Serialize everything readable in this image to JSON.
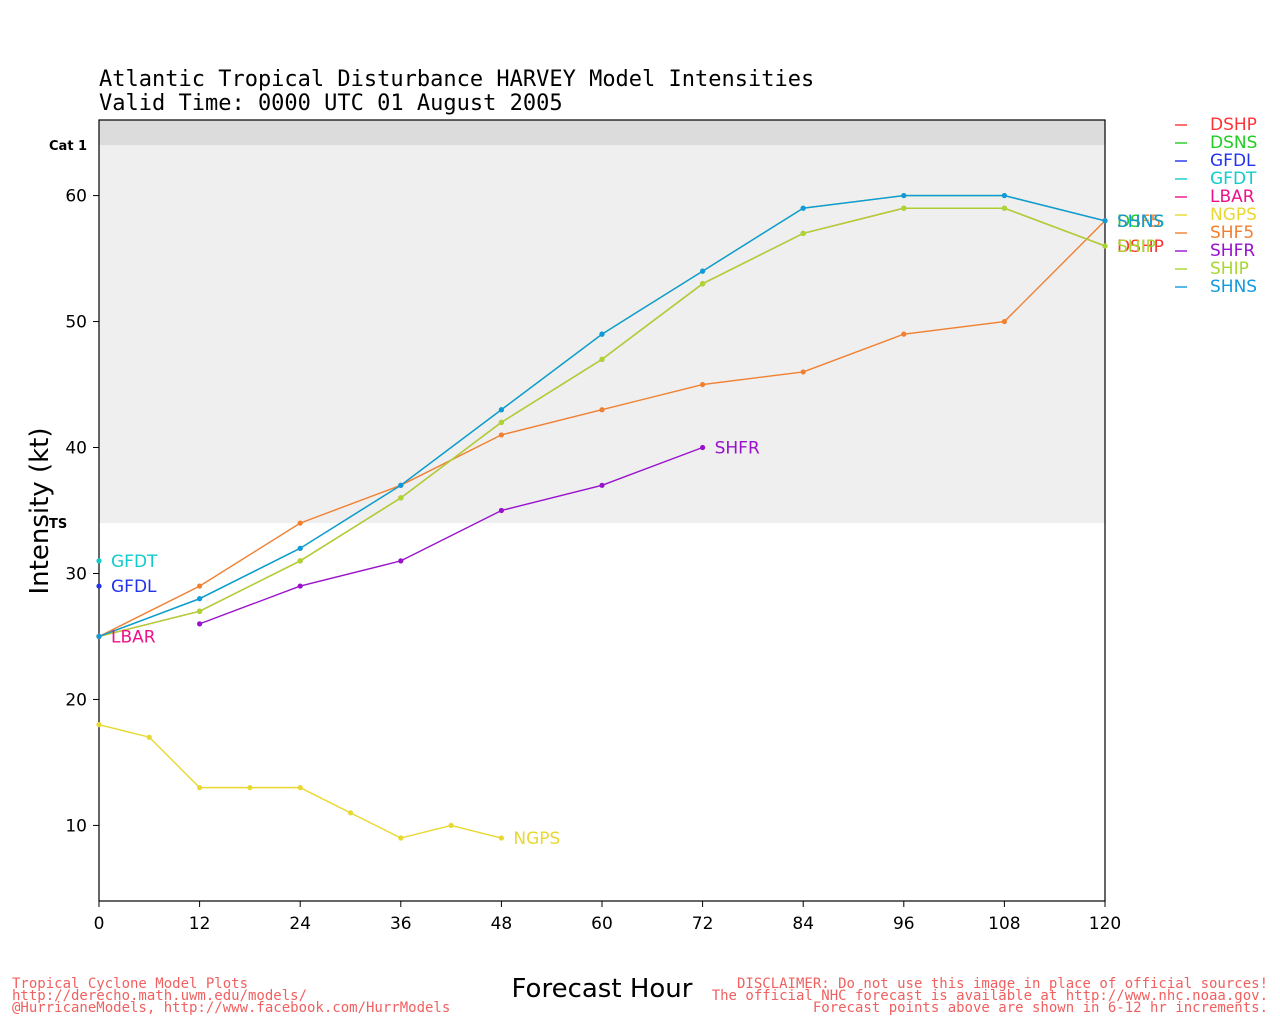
{
  "chart_data": {
    "type": "line",
    "title": "Atlantic Tropical Disturbance HARVEY Model Intensities",
    "subtitle": "Valid Time: 0000 UTC 01 August 2005",
    "xlabel": "Forecast Hour",
    "ylabel": "Intensity (kt)",
    "xlim": [
      0,
      120
    ],
    "ylim": [
      4,
      66
    ],
    "xticks": [
      0,
      12,
      24,
      36,
      48,
      60,
      72,
      84,
      96,
      108,
      120
    ],
    "yticks": [
      10,
      20,
      30,
      40,
      50,
      60
    ],
    "bands": [
      {
        "label": "TS",
        "from": 34,
        "to": 64,
        "color": "#efefef"
      },
      {
        "label": "Cat 1",
        "from": 64,
        "to": 66,
        "color": "#dcdcdc"
      }
    ],
    "legend": [
      "DSHP",
      "DSNS",
      "GFDL",
      "GFDT",
      "LBAR",
      "NGPS",
      "SHF5",
      "SHFR",
      "SHIP",
      "SHNS"
    ],
    "legend_position": "right",
    "series": [
      {
        "name": "DSHP",
        "color": "#ff3333",
        "label": "DSHP",
        "points": [
          [
            0,
            25
          ],
          [
            12,
            27
          ],
          [
            24,
            31
          ],
          [
            36,
            36
          ],
          [
            48,
            42
          ],
          [
            60,
            47
          ],
          [
            72,
            53
          ],
          [
            84,
            57
          ],
          [
            96,
            59
          ],
          [
            108,
            59
          ],
          [
            120,
            56
          ]
        ]
      },
      {
        "name": "DSNS",
        "color": "#22cc22",
        "label": "DSNS",
        "points": [
          [
            0,
            25
          ],
          [
            12,
            28
          ],
          [
            24,
            32
          ],
          [
            36,
            37
          ],
          [
            48,
            43
          ],
          [
            60,
            49
          ],
          [
            72,
            54
          ],
          [
            84,
            59
          ],
          [
            96,
            60
          ],
          [
            108,
            60
          ],
          [
            120,
            58
          ]
        ]
      },
      {
        "name": "GFDL",
        "color": "#2233ee",
        "label": "GFDL",
        "points": [
          [
            0,
            29
          ]
        ]
      },
      {
        "name": "GFDT",
        "color": "#11cccc",
        "label": "GFDT",
        "points": [
          [
            0,
            31
          ]
        ]
      },
      {
        "name": "LBAR",
        "color": "#ee1188",
        "label": "LBAR",
        "points": [
          [
            0,
            25
          ]
        ]
      },
      {
        "name": "NGPS",
        "color": "#e8d830",
        "label": "NGPS",
        "points": [
          [
            0,
            18
          ],
          [
            6,
            17
          ],
          [
            12,
            13
          ],
          [
            18,
            13
          ],
          [
            24,
            13
          ],
          [
            30,
            11
          ],
          [
            36,
            9
          ],
          [
            42,
            10
          ],
          [
            48,
            9
          ]
        ]
      },
      {
        "name": "SHF5",
        "color": "#f08030",
        "label": "SHF5",
        "points": [
          [
            0,
            25
          ],
          [
            12,
            29
          ],
          [
            24,
            34
          ],
          [
            36,
            37
          ],
          [
            48,
            41
          ],
          [
            60,
            43
          ],
          [
            72,
            45
          ],
          [
            84,
            46
          ],
          [
            96,
            49
          ],
          [
            108,
            50
          ],
          [
            120,
            58
          ]
        ]
      },
      {
        "name": "SHFR",
        "color": "#9911cc",
        "label": "SHFR",
        "points": [
          [
            12,
            26
          ],
          [
            24,
            29
          ],
          [
            36,
            31
          ],
          [
            48,
            35
          ],
          [
            60,
            37
          ],
          [
            72,
            40
          ]
        ]
      },
      {
        "name": "SHIP",
        "color": "#a8d830",
        "label": "SHIP",
        "points": [
          [
            0,
            25
          ],
          [
            12,
            27
          ],
          [
            24,
            31
          ],
          [
            36,
            36
          ],
          [
            48,
            42
          ],
          [
            60,
            47
          ],
          [
            72,
            53
          ],
          [
            84,
            57
          ],
          [
            96,
            59
          ],
          [
            108,
            59
          ],
          [
            120,
            56
          ]
        ]
      },
      {
        "name": "SHNS",
        "color": "#1199dd",
        "label": "SHNS",
        "points": [
          [
            0,
            25
          ],
          [
            12,
            28
          ],
          [
            24,
            32
          ],
          [
            36,
            37
          ],
          [
            48,
            43
          ],
          [
            60,
            49
          ],
          [
            72,
            54
          ],
          [
            84,
            59
          ],
          [
            96,
            60
          ],
          [
            108,
            60
          ],
          [
            120,
            58
          ]
        ]
      }
    ]
  },
  "footer": {
    "left": [
      "Tropical Cyclone Model Plots",
      "http://derecho.math.uwm.edu/models/",
      "@HurricaneModels, http://www.facebook.com/HurrModels"
    ],
    "right": [
      "DISCLAIMER: Do not use this image in place of official sources!",
      "The official NHC forecast is available at http://www.nhc.noaa.gov.",
      "Forecast points above are shown in 6-12 hr increments."
    ]
  }
}
